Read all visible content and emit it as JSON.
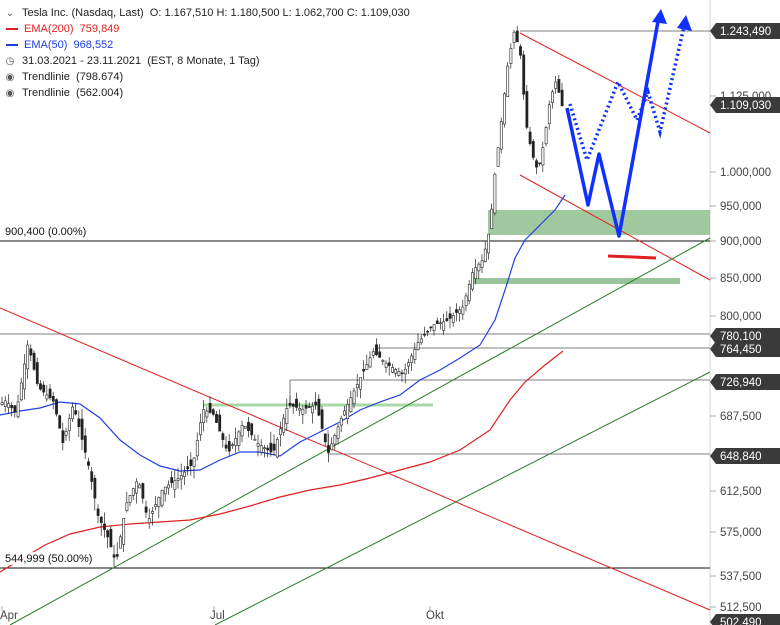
{
  "legend": {
    "instrument": "Tesla Inc. (Nasdaq, Last)",
    "ohlc": "O: 1.167,510  H: 1.180,500  L: 1.062,700  C: 1.109,030",
    "ema200_label": "EMA(200)",
    "ema200_value": "759,849",
    "ema200_color": "#e02020",
    "ema50_label": "EMA(50)",
    "ema50_value": "968,552",
    "ema50_color": "#2040e0",
    "range": "31.03.2021 - 23.11.2021",
    "range_info": "(EST, 8 Monate, 1 Tag)",
    "trend1": "Trendlinie",
    "trend1_value": "(798.674)",
    "trend2": "Trendlinie",
    "trend2_value": "(562.004)",
    "trend_icon": "target-icon"
  },
  "levels": {
    "fib_top": "900,400 (0.00%)",
    "fib_half": "544,999 (50.00%)"
  },
  "price_tags": [
    "1.243,490",
    "1.109,030",
    "780,100",
    "764,450",
    "726,940",
    "648,840",
    "502,490"
  ],
  "x_axis": [
    "Apr",
    "Jul",
    "Okt"
  ],
  "chart_data": {
    "type": "candlestick",
    "title": "Tesla Inc. (Nasdaq, Last)",
    "period": "31.03.2021 - 23.11.2021",
    "y_ticks": [
      1125,
      1000,
      950,
      900,
      850,
      800,
      687.5,
      612.5,
      575,
      537.5,
      512.5
    ],
    "y_tick_labels": [
      "1.125,000",
      "1.000,000",
      "950,000",
      "900,000",
      "850,000",
      "800,000",
      "687,500",
      "612,500",
      "575,000",
      "537,500",
      "512,500"
    ],
    "ylim": [
      502,
      1270
    ],
    "last": {
      "open": 1167.51,
      "high": 1180.5,
      "low": 1062.7,
      "close": 1109.03
    },
    "ema200_last": 759.849,
    "ema50_last": 968.552,
    "horizontal_levels": [
      1243.49,
      900.4,
      780.1,
      764.45,
      726.94,
      648.84,
      544.999,
      502.49
    ],
    "support_zones": [
      [
        915,
        945
      ],
      [
        847,
        853
      ]
    ],
    "colors": {
      "up": "#1e8a3c",
      "down": "#d02020",
      "zone": "#8fbf8f",
      "projection": "#2040e0",
      "arrow": "#1030ff"
    }
  }
}
